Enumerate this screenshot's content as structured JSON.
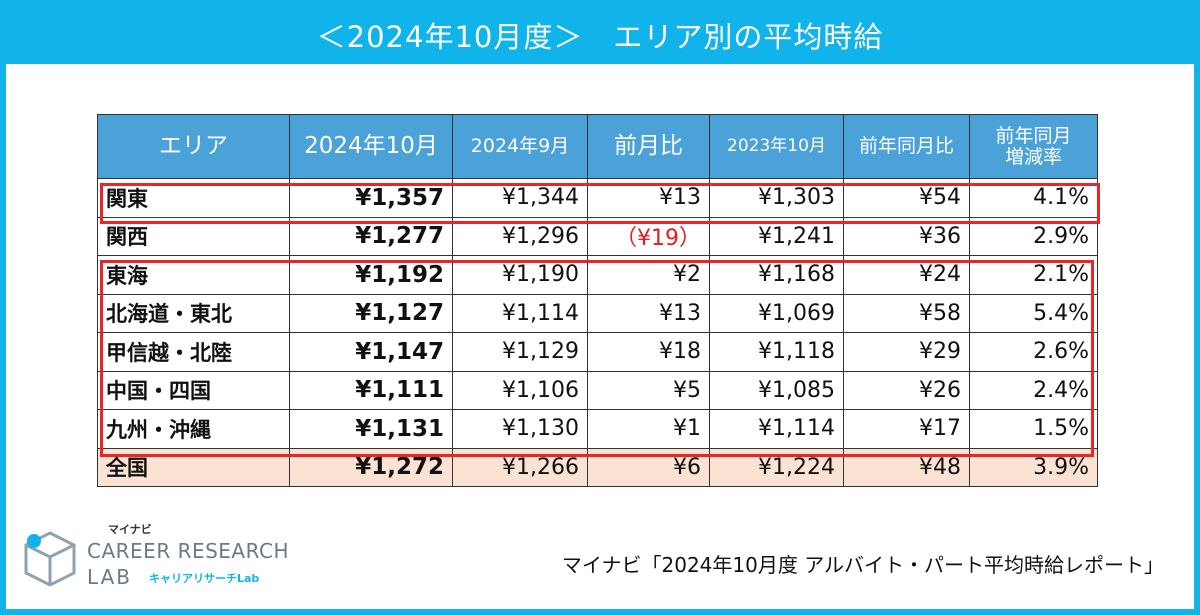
{
  "header": {
    "title": "＜2024年10月度＞　エリア別の平均時給"
  },
  "table": {
    "headers": [
      "エリア",
      "2024年10月",
      "2024年9月",
      "前月比",
      "2023年10月",
      "前年同月比",
      "前年同月",
      "増減率"
    ],
    "rows": [
      {
        "area": "関東",
        "oct2024": "¥1,357",
        "sep2024": "¥1,344",
        "mom": "¥13",
        "oct2023": "¥1,303",
        "yoy": "¥54",
        "rate": "4.1%"
      },
      {
        "area": "関西",
        "oct2024": "¥1,277",
        "sep2024": "¥1,296",
        "mom": "（¥19）",
        "oct2023": "¥1,241",
        "yoy": "¥36",
        "rate": "2.9%"
      },
      {
        "area": "東海",
        "oct2024": "¥1,192",
        "sep2024": "¥1,190",
        "mom": "¥2",
        "oct2023": "¥1,168",
        "yoy": "¥24",
        "rate": "2.1%"
      },
      {
        "area": "北海道・東北",
        "oct2024": "¥1,127",
        "sep2024": "¥1,114",
        "mom": "¥13",
        "oct2023": "¥1,069",
        "yoy": "¥58",
        "rate": "5.4%"
      },
      {
        "area": "甲信越・北陸",
        "oct2024": "¥1,147",
        "sep2024": "¥1,129",
        "mom": "¥18",
        "oct2023": "¥1,118",
        "yoy": "¥29",
        "rate": "2.6%"
      },
      {
        "area": "中国・四国",
        "oct2024": "¥1,111",
        "sep2024": "¥1,106",
        "mom": "¥5",
        "oct2023": "¥1,085",
        "yoy": "¥26",
        "rate": "2.4%"
      },
      {
        "area": "九州・沖縄",
        "oct2024": "¥1,131",
        "sep2024": "¥1,130",
        "mom": "¥1",
        "oct2023": "¥1,114",
        "yoy": "¥17",
        "rate": "1.5%"
      },
      {
        "area": "全国",
        "oct2024": "¥1,272",
        "sep2024": "¥1,266",
        "mom": "¥6",
        "oct2023": "¥1,224",
        "yoy": "¥48",
        "rate": "3.9%"
      }
    ]
  },
  "logo": {
    "brand": "マイナビ",
    "line1": "CAREER RESEARCH",
    "line2": "LAB",
    "sub": "キャリアリサーチLab"
  },
  "source": "マイナビ「2024年10月度 アルバイト・パート平均時給レポート」",
  "colors": {
    "accent": "#11b4ea",
    "table_header": "#4aa2d9",
    "highlight": "#e8262a",
    "total_row": "#fbe3d3",
    "negative": "#e02020"
  }
}
